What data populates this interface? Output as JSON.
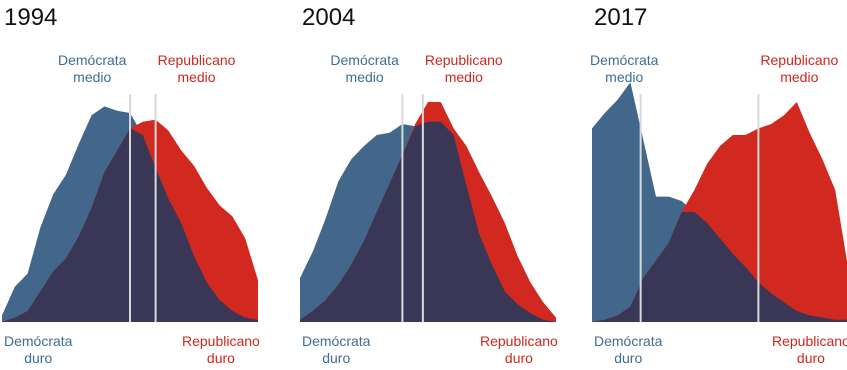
{
  "chart_data": [
    {
      "type": "area",
      "title": "1994",
      "x": [
        0,
        0.05,
        0.1,
        0.15,
        0.2,
        0.25,
        0.3,
        0.35,
        0.4,
        0.45,
        0.5,
        0.55,
        0.6,
        0.65,
        0.7,
        0.75,
        0.8,
        0.85,
        0.9,
        0.95,
        1.0
      ],
      "xlim": [
        0,
        1
      ],
      "ylim": [
        0,
        1
      ],
      "series": [
        {
          "name": "Demócratas",
          "color": "#43678a",
          "values": [
            0.03,
            0.16,
            0.22,
            0.43,
            0.58,
            0.67,
            0.81,
            0.94,
            0.98,
            0.96,
            0.95,
            0.85,
            0.7,
            0.56,
            0.45,
            0.3,
            0.18,
            0.1,
            0.05,
            0.02,
            0.01
          ]
        },
        {
          "name": "Republicanos",
          "color": "#d1281f",
          "values": [
            0.0,
            0.02,
            0.05,
            0.14,
            0.23,
            0.29,
            0.39,
            0.52,
            0.68,
            0.78,
            0.88,
            0.91,
            0.92,
            0.87,
            0.78,
            0.71,
            0.61,
            0.53,
            0.48,
            0.38,
            0.19
          ]
        }
      ],
      "overlap_color": "#3a3655",
      "medians": {
        "dem": 0.5,
        "rep": 0.6
      },
      "labels": {
        "dem_median": [
          "Demócrata",
          "medio"
        ],
        "rep_median": [
          "Republicano",
          "medio"
        ],
        "dem_hard": [
          "Demócrata",
          "duro"
        ],
        "rep_hard": [
          "Republicano",
          "duro"
        ]
      }
    },
    {
      "type": "area",
      "title": "2004",
      "x": [
        0,
        0.05,
        0.1,
        0.15,
        0.2,
        0.25,
        0.3,
        0.35,
        0.4,
        0.45,
        0.5,
        0.55,
        0.6,
        0.65,
        0.7,
        0.75,
        0.8,
        0.85,
        0.9,
        0.95,
        1.0
      ],
      "xlim": [
        0,
        1
      ],
      "ylim": [
        0,
        1
      ],
      "series": [
        {
          "name": "Demócratas",
          "color": "#43678a",
          "values": [
            0.2,
            0.32,
            0.47,
            0.64,
            0.74,
            0.8,
            0.85,
            0.86,
            0.9,
            0.89,
            0.91,
            0.91,
            0.85,
            0.62,
            0.4,
            0.26,
            0.14,
            0.08,
            0.04,
            0.01,
            0.0
          ]
        },
        {
          "name": "Republicanos",
          "color": "#d1281f",
          "values": [
            0.01,
            0.05,
            0.1,
            0.17,
            0.26,
            0.37,
            0.5,
            0.63,
            0.76,
            0.9,
            1.0,
            1.0,
            0.88,
            0.8,
            0.68,
            0.57,
            0.45,
            0.3,
            0.18,
            0.09,
            0.02
          ]
        }
      ],
      "overlap_color": "#3a3655",
      "medians": {
        "dem": 0.4,
        "rep": 0.48
      },
      "labels": {
        "dem_median": [
          "Demócrata",
          "medio"
        ],
        "rep_median": [
          "Republicano",
          "medio"
        ],
        "dem_hard": [
          "Demócrata",
          "duro"
        ],
        "rep_hard": [
          "Republicano",
          "duro"
        ]
      }
    },
    {
      "type": "area",
      "title": "2017",
      "x": [
        0,
        0.05,
        0.1,
        0.15,
        0.2,
        0.25,
        0.3,
        0.35,
        0.4,
        0.45,
        0.5,
        0.55,
        0.6,
        0.65,
        0.7,
        0.75,
        0.8,
        0.85,
        0.9,
        0.95,
        1.0
      ],
      "xlim": [
        0,
        1
      ],
      "ylim": [
        0,
        1
      ],
      "series": [
        {
          "name": "Demócratas",
          "color": "#43678a",
          "values": [
            0.88,
            0.95,
            1.01,
            1.09,
            0.83,
            0.57,
            0.57,
            0.55,
            0.5,
            0.45,
            0.38,
            0.31,
            0.25,
            0.18,
            0.13,
            0.09,
            0.05,
            0.03,
            0.02,
            0.01,
            0.01
          ]
        },
        {
          "name": "Republicanos",
          "color": "#d1281f",
          "values": [
            0.0,
            0.01,
            0.03,
            0.07,
            0.2,
            0.28,
            0.36,
            0.5,
            0.6,
            0.72,
            0.8,
            0.85,
            0.85,
            0.88,
            0.9,
            0.94,
            1.0,
            0.86,
            0.74,
            0.6,
            0.25
          ]
        }
      ],
      "overlap_color": "#3a3655",
      "medians": {
        "dem": 0.19,
        "rep": 0.65
      },
      "labels": {
        "dem_median": [
          "Demócrata",
          "medio"
        ],
        "rep_median": [
          "Republicano",
          "medio"
        ],
        "dem_hard": [
          "Demócrata",
          "duro"
        ],
        "rep_hard": [
          "Republicano",
          "duro"
        ]
      }
    }
  ]
}
